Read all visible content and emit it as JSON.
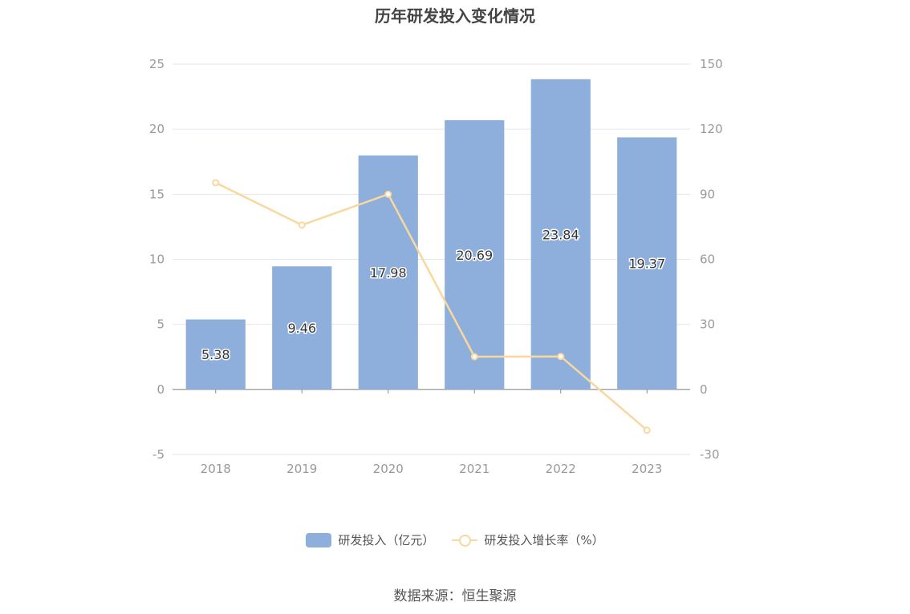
{
  "chart_data": {
    "type": "bar",
    "title": "历年研发投入变化情况",
    "categories": [
      "2018",
      "2019",
      "2020",
      "2021",
      "2022",
      "2023"
    ],
    "series": [
      {
        "name": "研发投入（亿元）",
        "type": "bar",
        "axis": "left",
        "values": [
          5.38,
          9.46,
          17.98,
          20.69,
          23.84,
          19.37
        ],
        "labels": [
          "5.38",
          "9.46",
          "17.98",
          "20.69",
          "23.84",
          "19.37"
        ],
        "color": "#8eaedb"
      },
      {
        "name": "研发投入增长率（%）",
        "type": "line",
        "axis": "right",
        "values": [
          95.3,
          75.8,
          90.0,
          15.1,
          15.2,
          -18.8
        ],
        "color": "#f8d89e"
      }
    ],
    "y_left": {
      "min": -5,
      "max": 25,
      "ticks": [
        "25",
        "20",
        "15",
        "10",
        "5",
        "0",
        "-5"
      ]
    },
    "y_right": {
      "min": -30,
      "max": 150,
      "ticks": [
        "150",
        "120",
        "90",
        "60",
        "30",
        "0",
        "-30"
      ]
    },
    "grid": true,
    "legend_position": "bottom"
  },
  "source": "数据来源：恒生聚源"
}
